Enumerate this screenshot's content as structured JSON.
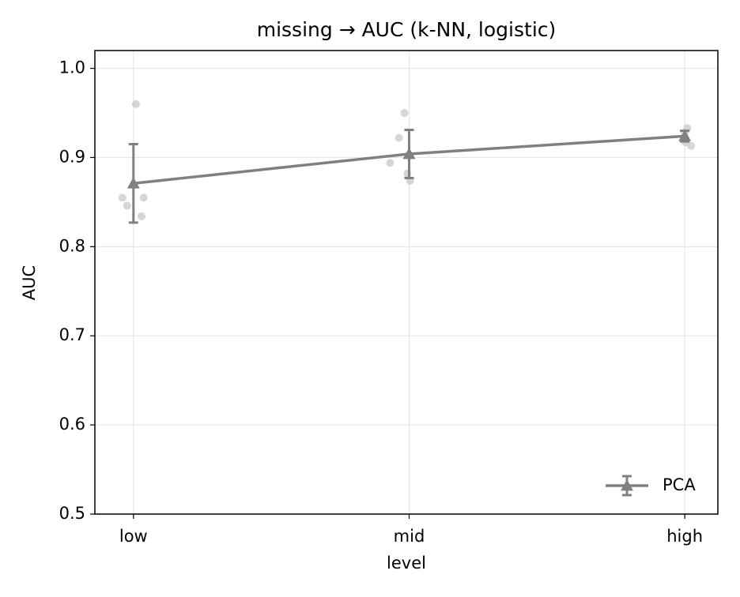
{
  "chart_data": {
    "type": "line",
    "title": "missing → AUC (k-NN, logistic)",
    "x_label": "level",
    "y_label": "AUC",
    "categories": [
      "low",
      "mid",
      "high"
    ],
    "xlim": [
      -0.14,
      2.12
    ],
    "ylim": [
      0.5,
      1.02
    ],
    "yticks": [
      0.5,
      0.6,
      0.7,
      0.8,
      0.9,
      {
        "value": 1,
        "label": "1.0"
      }
    ],
    "grid": true,
    "legend": "lower right",
    "series": [
      {
        "name": "PCA",
        "color": "#808080",
        "values": [
          0.871,
          0.904,
          0.924
        ],
        "errors": [
          0.044,
          0.027,
          0.006
        ]
      }
    ],
    "points": {
      "color": "#c4c4c4",
      "x": [
        0.009,
        -0.04,
        -0.023,
        0.037,
        0.029,
        0.983,
        0.963,
        0.931,
        0.994,
        1.003,
        2.009,
        2.0,
        2.003,
        2.023,
        1.997
      ],
      "y": [
        0.96,
        0.855,
        0.846,
        0.855,
        0.834,
        0.95,
        0.922,
        0.894,
        0.882,
        0.874,
        0.933,
        0.928,
        0.917,
        0.913,
        0.921
      ]
    }
  }
}
